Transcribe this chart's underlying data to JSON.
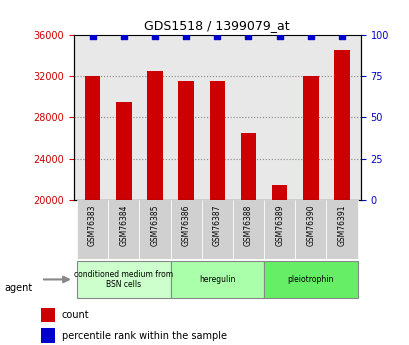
{
  "title": "GDS1518 / 1399079_at",
  "samples": [
    "GSM76383",
    "GSM76384",
    "GSM76385",
    "GSM76386",
    "GSM76387",
    "GSM76388",
    "GSM76389",
    "GSM76390",
    "GSM76391"
  ],
  "counts": [
    32000,
    29500,
    32500,
    31500,
    31500,
    26500,
    21500,
    32000,
    34500
  ],
  "percentiles": [
    99,
    99,
    99,
    99,
    99,
    99,
    99,
    99,
    99
  ],
  "ylim_left": [
    20000,
    36000
  ],
  "ylim_right": [
    0,
    100
  ],
  "yticks_left": [
    20000,
    24000,
    28000,
    32000,
    36000
  ],
  "yticks_right": [
    0,
    25,
    50,
    75,
    100
  ],
  "groups": [
    {
      "label": "conditioned medium from\nBSN cells",
      "start": 0,
      "end": 3,
      "color": "#ccffcc"
    },
    {
      "label": "heregulin",
      "start": 3,
      "end": 6,
      "color": "#aaffaa"
    },
    {
      "label": "pleiotrophin",
      "start": 6,
      "end": 9,
      "color": "#66ee66"
    }
  ],
  "bar_color": "#cc0000",
  "percentile_color": "#0000cc",
  "grid_color": "#888888",
  "bg_color": "#e8e8e8",
  "left_tick_color": "#cc0000",
  "right_tick_color": "#0000cc",
  "legend_items": [
    {
      "color": "#cc0000",
      "label": "count"
    },
    {
      "color": "#0000cc",
      "label": "percentile rank within the sample"
    }
  ]
}
